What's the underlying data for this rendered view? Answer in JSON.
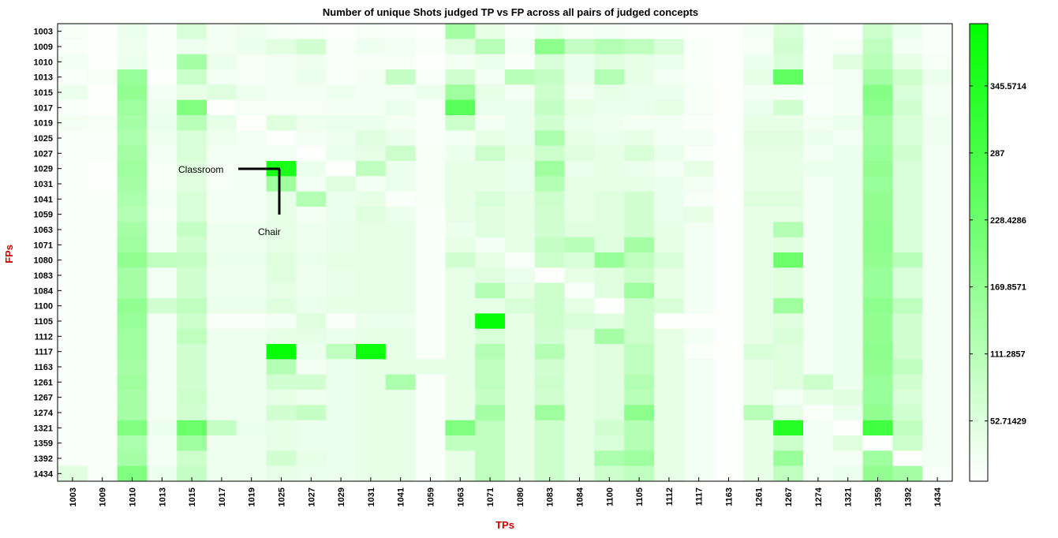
{
  "chart_data": {
    "type": "heatmap",
    "title": "Number of unique Shots judged TP vs FP across all pairs of judged concepts",
    "xlabel": "TPs",
    "ylabel": "FPs",
    "x_categories": [
      "1003",
      "1009",
      "1010",
      "1013",
      "1015",
      "1017",
      "1019",
      "1025",
      "1027",
      "1029",
      "1031",
      "1041",
      "1059",
      "1063",
      "1071",
      "1080",
      "1083",
      "1084",
      "1100",
      "1105",
      "1112",
      "1117",
      "1163",
      "1261",
      "1267",
      "1274",
      "1321",
      "1359",
      "1392",
      "1434"
    ],
    "y_categories": [
      "1003",
      "1009",
      "1010",
      "1013",
      "1015",
      "1017",
      "1019",
      "1025",
      "1027",
      "1029",
      "1031",
      "1041",
      "1059",
      "1063",
      "1071",
      "1080",
      "1083",
      "1084",
      "1100",
      "1105",
      "1112",
      "1117",
      "1163",
      "1261",
      "1267",
      "1274",
      "1321",
      "1359",
      "1392",
      "1434"
    ],
    "values": [
      [
        15,
        5,
        30,
        10,
        60,
        20,
        25,
        15,
        10,
        5,
        15,
        10,
        5,
        140,
        40,
        10,
        30,
        15,
        20,
        10,
        10,
        5,
        5,
        20,
        60,
        10,
        5,
        80,
        30,
        10
      ],
      [
        10,
        5,
        25,
        10,
        25,
        20,
        30,
        45,
        70,
        10,
        25,
        20,
        10,
        50,
        110,
        20,
        180,
        90,
        120,
        100,
        60,
        10,
        5,
        15,
        70,
        10,
        15,
        100,
        20,
        10
      ],
      [
        20,
        5,
        30,
        10,
        140,
        30,
        15,
        20,
        25,
        10,
        15,
        15,
        5,
        20,
        30,
        10,
        60,
        30,
        50,
        40,
        30,
        10,
        5,
        30,
        60,
        10,
        50,
        110,
        40,
        15
      ],
      [
        10,
        15,
        160,
        5,
        85,
        20,
        15,
        20,
        30,
        10,
        20,
        90,
        10,
        70,
        20,
        110,
        90,
        30,
        120,
        40,
        20,
        10,
        5,
        40,
        250,
        15,
        20,
        140,
        80,
        30
      ],
      [
        30,
        5,
        170,
        20,
        40,
        50,
        25,
        20,
        20,
        25,
        20,
        20,
        30,
        150,
        40,
        20,
        80,
        20,
        40,
        30,
        30,
        15,
        5,
        20,
        20,
        10,
        20,
        190,
        60,
        20
      ],
      [
        10,
        5,
        150,
        25,
        200,
        5,
        15,
        15,
        15,
        20,
        20,
        30,
        10,
        260,
        30,
        30,
        90,
        40,
        30,
        30,
        40,
        15,
        5,
        30,
        70,
        10,
        20,
        180,
        70,
        20
      ],
      [
        20,
        15,
        140,
        30,
        110,
        40,
        5,
        50,
        25,
        30,
        30,
        20,
        10,
        80,
        20,
        30,
        70,
        30,
        25,
        20,
        20,
        10,
        5,
        40,
        40,
        20,
        30,
        150,
        60,
        25
      ],
      [
        10,
        10,
        130,
        25,
        60,
        25,
        20,
        5,
        20,
        25,
        50,
        30,
        10,
        20,
        40,
        30,
        130,
        40,
        30,
        40,
        20,
        20,
        5,
        50,
        50,
        30,
        20,
        150,
        60,
        25
      ],
      [
        10,
        10,
        140,
        20,
        60,
        20,
        20,
        20,
        5,
        30,
        40,
        80,
        15,
        30,
        80,
        40,
        80,
        50,
        40,
        60,
        30,
        10,
        5,
        40,
        40,
        20,
        30,
        160,
        70,
        20
      ],
      [
        10,
        5,
        150,
        15,
        50,
        15,
        20,
        360,
        30,
        5,
        100,
        30,
        15,
        40,
        40,
        30,
        150,
        30,
        40,
        30,
        20,
        40,
        5,
        40,
        40,
        30,
        30,
        170,
        60,
        20
      ],
      [
        10,
        5,
        140,
        15,
        50,
        15,
        20,
        150,
        20,
        50,
        20,
        30,
        15,
        40,
        40,
        30,
        120,
        40,
        40,
        40,
        30,
        20,
        5,
        40,
        40,
        20,
        30,
        160,
        60,
        20
      ],
      [
        10,
        10,
        130,
        20,
        60,
        20,
        20,
        40,
        120,
        30,
        40,
        10,
        15,
        40,
        60,
        40,
        80,
        40,
        50,
        70,
        30,
        15,
        5,
        50,
        50,
        20,
        30,
        170,
        60,
        20
      ],
      [
        10,
        10,
        120,
        15,
        60,
        20,
        20,
        40,
        20,
        30,
        50,
        30,
        10,
        40,
        50,
        40,
        70,
        40,
        50,
        70,
        30,
        40,
        5,
        40,
        40,
        20,
        30,
        170,
        60,
        20
      ],
      [
        10,
        10,
        140,
        20,
        90,
        25,
        25,
        40,
        25,
        35,
        40,
        40,
        10,
        30,
        50,
        40,
        70,
        50,
        50,
        70,
        40,
        20,
        5,
        40,
        120,
        20,
        30,
        180,
        60,
        20
      ],
      [
        10,
        10,
        150,
        20,
        70,
        25,
        25,
        40,
        25,
        35,
        40,
        40,
        10,
        40,
        20,
        40,
        90,
        110,
        50,
        140,
        40,
        20,
        5,
        40,
        50,
        20,
        30,
        180,
        60,
        20
      ],
      [
        10,
        10,
        170,
        100,
        90,
        30,
        30,
        50,
        30,
        40,
        40,
        40,
        10,
        70,
        40,
        10,
        80,
        60,
        160,
        100,
        60,
        20,
        5,
        40,
        230,
        20,
        30,
        170,
        110,
        20
      ],
      [
        10,
        10,
        140,
        20,
        70,
        25,
        25,
        50,
        25,
        35,
        40,
        40,
        10,
        40,
        50,
        30,
        5,
        40,
        50,
        80,
        40,
        20,
        5,
        40,
        50,
        20,
        30,
        160,
        60,
        20
      ],
      [
        10,
        10,
        140,
        20,
        70,
        25,
        25,
        40,
        25,
        35,
        40,
        40,
        10,
        40,
        120,
        40,
        80,
        10,
        50,
        150,
        40,
        20,
        5,
        40,
        50,
        20,
        30,
        160,
        60,
        20
      ],
      [
        10,
        10,
        170,
        70,
        100,
        30,
        30,
        50,
        30,
        40,
        40,
        40,
        10,
        40,
        40,
        60,
        80,
        40,
        5,
        80,
        60,
        20,
        5,
        40,
        150,
        20,
        30,
        180,
        100,
        20
      ],
      [
        10,
        10,
        160,
        20,
        80,
        10,
        10,
        20,
        50,
        10,
        30,
        30,
        10,
        40,
        390,
        40,
        80,
        60,
        50,
        80,
        5,
        5,
        5,
        40,
        50,
        20,
        30,
        170,
        70,
        20
      ],
      [
        10,
        10,
        150,
        20,
        100,
        25,
        25,
        40,
        40,
        30,
        40,
        40,
        10,
        40,
        60,
        40,
        70,
        40,
        140,
        80,
        40,
        20,
        5,
        40,
        60,
        20,
        30,
        170,
        70,
        20
      ],
      [
        10,
        10,
        150,
        20,
        70,
        25,
        25,
        390,
        30,
        100,
        380,
        40,
        10,
        40,
        120,
        40,
        120,
        40,
        50,
        100,
        40,
        10,
        5,
        60,
        50,
        20,
        30,
        180,
        70,
        20
      ],
      [
        10,
        10,
        140,
        20,
        70,
        25,
        25,
        120,
        20,
        30,
        40,
        40,
        40,
        40,
        100,
        40,
        70,
        40,
        50,
        100,
        40,
        20,
        5,
        40,
        50,
        20,
        30,
        170,
        100,
        20
      ],
      [
        10,
        10,
        150,
        20,
        70,
        25,
        25,
        70,
        70,
        30,
        40,
        130,
        10,
        40,
        100,
        40,
        80,
        40,
        50,
        120,
        40,
        20,
        5,
        40,
        50,
        80,
        30,
        160,
        70,
        20
      ],
      [
        10,
        10,
        140,
        20,
        80,
        25,
        25,
        40,
        25,
        30,
        40,
        40,
        10,
        40,
        90,
        40,
        70,
        40,
        50,
        110,
        40,
        20,
        5,
        40,
        20,
        40,
        50,
        160,
        60,
        20
      ],
      [
        10,
        10,
        140,
        20,
        70,
        25,
        25,
        70,
        90,
        30,
        40,
        40,
        10,
        40,
        140,
        40,
        150,
        40,
        50,
        180,
        40,
        20,
        5,
        110,
        40,
        10,
        30,
        170,
        70,
        20
      ],
      [
        10,
        10,
        200,
        30,
        230,
        90,
        30,
        40,
        30,
        30,
        40,
        40,
        10,
        200,
        100,
        40,
        80,
        40,
        70,
        120,
        40,
        20,
        5,
        40,
        340,
        20,
        5,
        300,
        100,
        20
      ],
      [
        10,
        10,
        130,
        20,
        150,
        25,
        25,
        40,
        30,
        30,
        40,
        40,
        10,
        100,
        100,
        40,
        80,
        40,
        60,
        120,
        40,
        20,
        5,
        40,
        80,
        20,
        50,
        5,
        80,
        20
      ],
      [
        10,
        10,
        140,
        20,
        80,
        25,
        25,
        70,
        40,
        30,
        40,
        40,
        10,
        40,
        100,
        40,
        80,
        40,
        130,
        150,
        40,
        20,
        5,
        40,
        160,
        20,
        20,
        150,
        5,
        20
      ],
      [
        50,
        10,
        200,
        30,
        90,
        25,
        25,
        40,
        30,
        30,
        40,
        40,
        10,
        40,
        100,
        40,
        80,
        40,
        80,
        100,
        40,
        20,
        5,
        40,
        100,
        20,
        30,
        170,
        140,
        10
      ]
    ],
    "colorbar": {
      "min": 0,
      "max": 400,
      "ticks": [
        "52.71429",
        "111.2857",
        "169.8571",
        "228.4286",
        "287",
        "345.5714"
      ]
    },
    "colormap": [
      "#ffffff",
      "#00ff00"
    ],
    "grid": false,
    "annotations": [
      {
        "text": "Classroom",
        "x": "1025",
        "y": "1029"
      },
      {
        "text": "Chair",
        "x": "1025",
        "y": "1059"
      }
    ]
  }
}
